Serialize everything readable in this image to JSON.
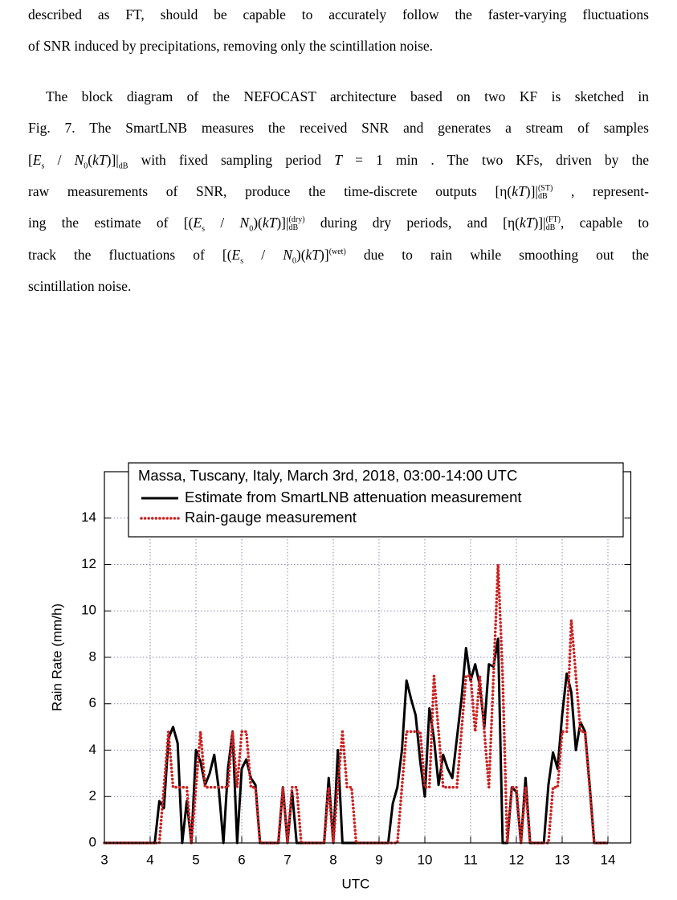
{
  "text": {
    "paragraphs": [
      {
        "lines": [
          [
            "described as FT, should be capable to accurately follow the faster-varying fluctuations"
          ],
          [
            "of SNR induced by precipitations, removing only the scintillation noise."
          ]
        ]
      },
      {
        "lines": [
          [
            "The block diagram of the NEFOCAST architecture based on two KF is sketched in"
          ],
          [
            "Fig. 7. The SmartLNB measures the received SNR and generates a stream of samples"
          ],
          [
            "[",
            {
              "i": "E"
            },
            {
              "sub": "s"
            },
            " / ",
            {
              "i": "N"
            },
            {
              "sub": "0"
            },
            "(",
            {
              "i": "kT"
            },
            ")]|",
            {
              "sub": "dB"
            },
            " with fixed sampling period ",
            {
              "i": "T"
            },
            " = 1 min . The two KFs, driven by the"
          ],
          [
            "raw measurements of SNR, produce the time-discrete outputs [η(",
            {
              "i": "kT"
            },
            ")]|",
            {
              "sub": "dB",
              "sup": "(ST)"
            },
            " , represent-"
          ],
          [
            "ing the estimate of [(",
            {
              "i": "E"
            },
            {
              "sub": "s"
            },
            " / ",
            {
              "i": "N"
            },
            {
              "sub": "0"
            },
            ")(",
            {
              "i": "kT"
            },
            ")]|",
            {
              "sub": "dB",
              "sup": "(dry)"
            },
            " during dry periods, and [η(",
            {
              "i": "kT"
            },
            ")]|",
            {
              "sub": "dB",
              "sup": "(FT)"
            },
            ", capable to"
          ],
          [
            "track the fluctuations of [(",
            {
              "i": "E"
            },
            {
              "sub": "s"
            },
            " / ",
            {
              "i": "N"
            },
            {
              "sub": "0"
            },
            ")(",
            {
              "i": "kT"
            },
            ")]",
            {
              "sup": "(wet)"
            },
            " due to rain while smoothing out the"
          ],
          [
            "scintillation noise."
          ]
        ]
      }
    ]
  },
  "chart_data": {
    "type": "line",
    "legend_title": "Massa, Tuscany, Italy, March 3rd, 2018, 03:00-14:00 UTC",
    "xlabel": "UTC",
    "ylabel": "Rain Rate (mm/h)",
    "xlim": [
      3,
      14.5
    ],
    "ylim": [
      0,
      16
    ],
    "xticks": [
      3,
      4,
      5,
      6,
      7,
      8,
      9,
      10,
      11,
      12,
      13,
      14
    ],
    "yticks": [
      0,
      2,
      4,
      6,
      8,
      10,
      12,
      14
    ],
    "grid": true,
    "x": [
      3,
      3.1,
      3.2,
      3.3,
      3.4,
      3.5,
      3.6,
      3.7,
      3.8,
      3.9,
      4,
      4.1,
      4.2,
      4.3,
      4.4,
      4.5,
      4.6,
      4.7,
      4.8,
      4.9,
      5,
      5.1,
      5.2,
      5.3,
      5.4,
      5.5,
      5.6,
      5.7,
      5.8,
      5.9,
      6,
      6.1,
      6.2,
      6.3,
      6.4,
      6.5,
      6.6,
      6.7,
      6.8,
      6.9,
      7,
      7.1,
      7.2,
      7.3,
      7.4,
      7.5,
      7.6,
      7.7,
      7.8,
      7.9,
      8,
      8.1,
      8.2,
      8.3,
      8.4,
      8.5,
      8.6,
      8.7,
      8.8,
      8.9,
      9,
      9.1,
      9.2,
      9.3,
      9.4,
      9.5,
      9.6,
      9.7,
      9.8,
      9.9,
      10,
      10.1,
      10.2,
      10.3,
      10.4,
      10.5,
      10.6,
      10.7,
      10.8,
      10.9,
      11,
      11.1,
      11.2,
      11.3,
      11.4,
      11.5,
      11.6,
      11.7,
      11.8,
      11.9,
      12,
      12.1,
      12.2,
      12.3,
      12.4,
      12.5,
      12.6,
      12.7,
      12.8,
      12.9,
      13,
      13.1,
      13.2,
      13.3,
      13.4,
      13.5,
      13.6,
      13.7,
      13.8,
      13.9,
      14
    ],
    "series": [
      {
        "name": "Estimate from SmartLNB attenuation measurement",
        "color": "#000000",
        "style": "solid",
        "values": [
          0,
          0,
          0,
          0,
          0,
          0,
          0,
          0,
          0,
          0,
          0,
          0,
          1.8,
          1.5,
          4.5,
          5,
          4.3,
          0,
          1.8,
          0,
          4,
          3.5,
          2.5,
          3,
          3.8,
          2.3,
          0,
          3.2,
          4.8,
          0,
          3.2,
          3.6,
          2.8,
          2.5,
          0,
          0,
          0,
          0,
          0,
          2.4,
          0,
          2.2,
          0,
          0,
          0,
          0,
          0,
          0,
          0,
          2.8,
          0,
          4,
          0,
          0,
          0,
          0,
          0,
          0,
          0,
          0,
          0,
          0,
          0,
          1.7,
          2.4,
          4,
          7,
          6.2,
          5.5,
          3.5,
          2,
          5.8,
          4.5,
          2.5,
          3.8,
          3.2,
          2.8,
          4.5,
          6.2,
          8.4,
          7,
          7.7,
          6.8,
          5,
          7.7,
          7.6,
          8.8,
          0,
          0,
          2.4,
          2.2,
          0,
          2.8,
          0,
          0,
          0,
          0,
          2.5,
          3.9,
          3.2,
          5.5,
          7.3,
          6.5,
          4,
          5.2,
          4.8,
          2.5,
          0,
          0,
          0,
          0
        ]
      },
      {
        "name": "Rain-gauge measurement",
        "color": "#cc2222",
        "style": "dotted",
        "values": [
          0,
          0,
          0,
          0,
          0,
          0,
          0,
          0,
          0,
          0,
          0,
          0,
          0,
          2.4,
          4.8,
          2.4,
          2.4,
          2.4,
          2.4,
          0,
          2.4,
          4.8,
          2.4,
          2.4,
          2.4,
          2.4,
          2.4,
          2.4,
          4.8,
          2.4,
          4.8,
          4.8,
          2.4,
          2.4,
          0,
          0,
          0,
          0,
          0,
          2.4,
          0,
          2.4,
          2.4,
          0,
          0,
          0,
          0,
          0,
          0,
          2.4,
          0,
          2.4,
          4.8,
          2.4,
          2.4,
          0,
          0,
          0,
          0,
          0,
          0,
          0,
          0,
          0,
          0,
          2.4,
          4.8,
          4.8,
          4.8,
          4.8,
          2.4,
          2.4,
          7.2,
          4.8,
          2.4,
          2.4,
          2.4,
          2.4,
          4.8,
          7.2,
          7.2,
          4.8,
          7.2,
          4.8,
          2.4,
          7.2,
          12,
          7.2,
          0,
          2.4,
          2.4,
          0,
          2.4,
          0,
          0,
          0,
          0,
          0,
          2.4,
          2.4,
          4.8,
          4.8,
          9.6,
          7.2,
          4.8,
          4.8,
          2.4,
          0,
          0,
          0,
          0
        ]
      }
    ]
  }
}
